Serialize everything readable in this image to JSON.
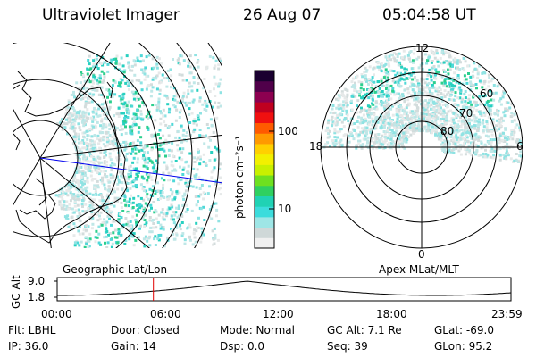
{
  "header": {
    "instrument": "Ultraviolet Imager",
    "date": "26 Aug 07",
    "time": "05:04:58 UT"
  },
  "geo_panel": {
    "label": "Geographic Lat/Lon"
  },
  "apex_panel": {
    "label": "Apex MLat/MLT",
    "mlt_labels": {
      "top": "12",
      "right": "6",
      "bottom": "0",
      "left": "18"
    },
    "mlat_labels": [
      "60",
      "70",
      "80"
    ]
  },
  "colorbar": {
    "unit_label": "photon cm⁻²s⁻¹",
    "scale": "log",
    "tick_labels": [
      "10",
      "100"
    ],
    "colors": [
      "#f0f0f0",
      "#cfd8d8",
      "#9ee6e6",
      "#3cdcdc",
      "#20d2b4",
      "#2fd060",
      "#6ee020",
      "#c8f000",
      "#f2f000",
      "#ffd000",
      "#ff9a00",
      "#ff5a00",
      "#f01010",
      "#c00020",
      "#8c0050",
      "#50004a",
      "#1a0030"
    ]
  },
  "altitude_track": {
    "axis_label": "GC Alt",
    "y_tick_labels": [
      "9.0",
      "1.8"
    ],
    "x_tick_labels": [
      "00:00",
      "06:00",
      "12:00",
      "18:00",
      "23:59"
    ],
    "y_range_re": [
      1.8,
      9.0
    ],
    "current_marker_time": "05:04:58",
    "accent_color": "#e00000"
  },
  "footer": {
    "flt": "Flt: LBHL",
    "ip": "IP: 36.0",
    "door": "Door: Closed",
    "gain": "Gain: 14",
    "mode": "Mode: Normal",
    "dsp": "Dsp:     0.0",
    "gc_alt": "GC Alt: 7.1 Re",
    "seq": "Seq: 39",
    "glat": "GLat: -69.0",
    "glon": "GLon:  95.2"
  }
}
